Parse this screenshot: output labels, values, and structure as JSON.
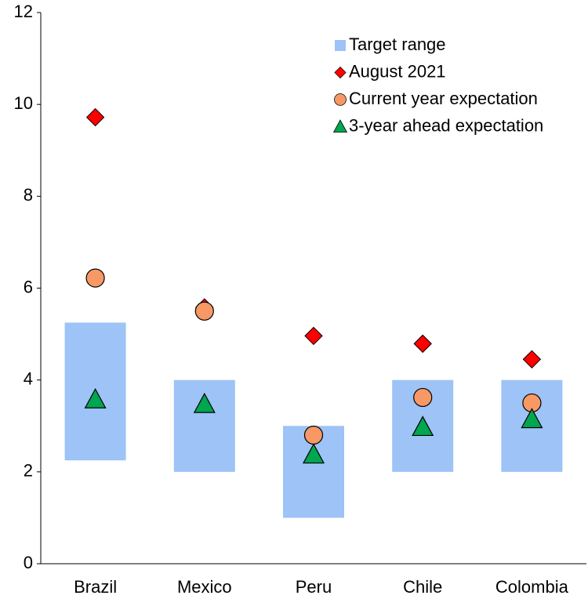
{
  "chart_data": {
    "type": "range_scatter",
    "categories": [
      "Brazil",
      "Mexico",
      "Peru",
      "Chile",
      "Colombia"
    ],
    "ylim": [
      0,
      12
    ],
    "yticks": [
      0,
      2,
      4,
      6,
      8,
      10,
      12
    ],
    "series": [
      {
        "name": "Target range",
        "kind": "range",
        "color": "#9dc3f7",
        "low": [
          2.25,
          2,
          1,
          2,
          2
        ],
        "high": [
          5.25,
          4,
          3,
          4,
          4
        ]
      },
      {
        "name": "August 2021",
        "kind": "diamond",
        "color": "#ff0000",
        "values": [
          9.72,
          5.58,
          4.96,
          4.79,
          4.45
        ]
      },
      {
        "name": "Current year expectation",
        "kind": "circle",
        "color": "#f79865",
        "values": [
          6.22,
          5.5,
          2.8,
          3.62,
          3.5
        ]
      },
      {
        "name": "3-year ahead expectation",
        "kind": "triangle",
        "color": "#00a650",
        "values": [
          3.58,
          3.48,
          2.38,
          2.98,
          3.15
        ]
      }
    ]
  }
}
